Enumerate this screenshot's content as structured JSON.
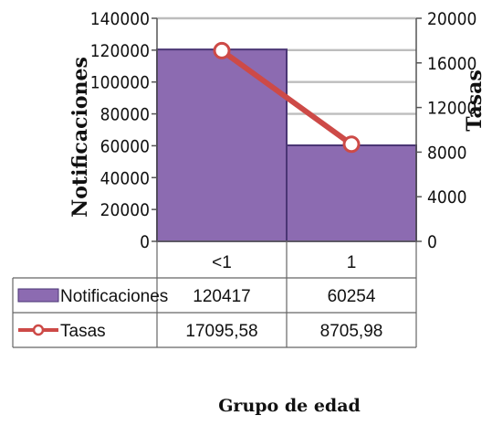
{
  "chart_data": {
    "type": "bar",
    "categories": [
      "<1",
      "1"
    ],
    "series": [
      {
        "name": "Notificaciones",
        "kind": "bar",
        "axis": "left",
        "values": [
          120417,
          60254
        ],
        "value_labels": [
          "120417",
          "60254"
        ],
        "color": "#8c6bb1"
      },
      {
        "name": "Tasas",
        "kind": "line",
        "axis": "right",
        "values": [
          17095.58,
          8705.98
        ],
        "value_labels": [
          "17095,58",
          "8705,98"
        ],
        "color": "#cd4a47"
      }
    ],
    "xlabel": "Grupo de edad",
    "ylabel": "Notificaciones",
    "y2label": "Tasas",
    "ylim": [
      0,
      140000
    ],
    "y2lim": [
      0,
      20000
    ],
    "yticks": [
      0,
      20000,
      40000,
      60000,
      80000,
      100000,
      120000,
      140000
    ],
    "y2ticks": [
      0,
      4000,
      8000,
      12000,
      16000,
      20000
    ],
    "grid": true,
    "legend": "data-table"
  }
}
